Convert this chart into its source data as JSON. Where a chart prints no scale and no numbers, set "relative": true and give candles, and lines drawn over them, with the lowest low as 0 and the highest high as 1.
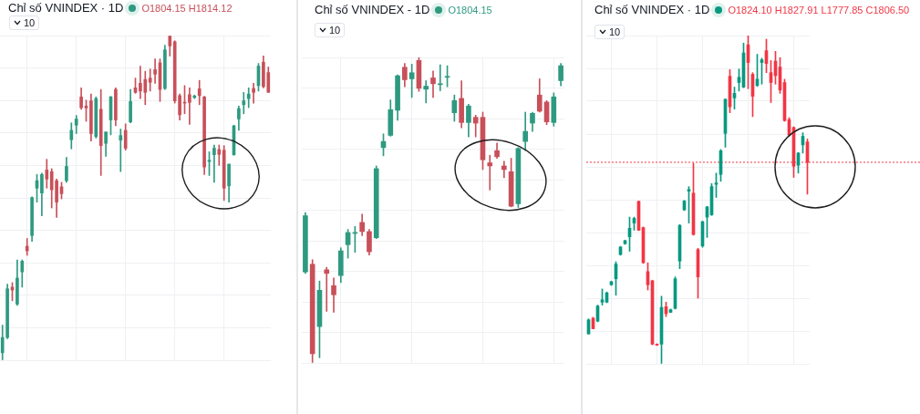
{
  "chart_data": [
    {
      "type": "candlestick",
      "title": "Chỉ số VNINDEX · 1D",
      "subtitle": "O1804.15 H1814.12",
      "annotations": [
        "10"
      ],
      "relative": true,
      "grid": true,
      "colors": [
        "#2e9a80",
        "#2e9a80",
        "#c8505a",
        "#2e9a80",
        "#2e9a80",
        "#c8505a",
        "#2e9a80",
        "#2e9a80",
        "#2e9a80",
        "#c8505a",
        "#c8505a",
        "#c8505a",
        "#c8505a",
        "#2e9a80",
        "#2e9a80",
        "#2e9a80",
        "#c8505a",
        "#c8505a",
        "#c8505a",
        "#2e9a80",
        "#c8505a",
        "#2e9a80",
        "#2e9a80",
        "#c8505a",
        "#2e9a80",
        "#c8505a",
        "#2e9a80",
        "#c8505a",
        "#c8505a",
        "#c8505a",
        "#c8505a",
        "#c8505a",
        "#c8505a",
        "#2e9a80",
        "#c8505a",
        "#c8505a",
        "#c8505a",
        "#c8505a",
        "#c8505a",
        "#2e9a80",
        "#c8505a",
        "#c8505a",
        "#2e9a80",
        "#2e9a80",
        "#c8505a",
        "#c8505a",
        "#2e9a80",
        "#2e9a80",
        "#2e9a80",
        "#2e9a80",
        "#2e9a80",
        "#c8505a",
        "#2e9a80",
        "#c8505a",
        "#c8505a"
      ],
      "categories": [
        null,
        null,
        null,
        null,
        null,
        null,
        null,
        null,
        null,
        null,
        null,
        null,
        null,
        null,
        null,
        null,
        null,
        null,
        null,
        null,
        null,
        null,
        null,
        null,
        null,
        null,
        null,
        null,
        null,
        null,
        null,
        null,
        null,
        null,
        null,
        null,
        null,
        null,
        null,
        null,
        null,
        null,
        null,
        null,
        null,
        null,
        null,
        null,
        null,
        null,
        null,
        null,
        null,
        null,
        null
      ],
      "ohlc": [
        [
          0.023,
          0.108,
          0,
          0.07
        ],
        [
          0.07,
          0.234,
          0.066,
          0.22
        ],
        [
          0.225,
          0.239,
          0.183,
          0.216
        ],
        [
          0.173,
          0.309,
          0.169,
          0.253
        ],
        [
          0.272,
          0.309,
          0.225,
          0.305
        ],
        [
          0.351,
          0.375,
          0.323,
          0.337
        ],
        [
          0.384,
          0.503,
          0.366,
          0.501
        ],
        [
          0.53,
          0.572,
          0.487,
          0.553
        ],
        [
          0.515,
          0.576,
          0.445,
          0.572
        ],
        [
          0.586,
          0.619,
          0.53,
          0.558
        ],
        [
          0.581,
          0.59,
          0.469,
          0.525
        ],
        [
          0.553,
          0.558,
          0.44,
          0.487
        ],
        [
          0.534,
          0.548,
          0.497,
          0.513
        ],
        [
          0.553,
          0.625,
          0.548,
          0.597
        ],
        [
          0.679,
          0.731,
          0.651,
          0.708
        ],
        [
          0.724,
          0.754,
          0.698,
          0.743
        ],
        [
          0.811,
          0.839,
          0.773,
          0.778
        ],
        [
          0.783,
          0.801,
          0.736,
          0.777
        ],
        [
          0.799,
          0.82,
          0.675,
          0.698
        ],
        [
          0.689,
          0.811,
          0.684,
          0.806
        ],
        [
          0.773,
          0.834,
          0.569,
          0.661
        ],
        [
          0.668,
          0.703,
          0.628,
          0.703
        ],
        [
          0.74,
          0.813,
          0.694,
          0.811
        ],
        [
          0.834,
          0.839,
          0.722,
          0.74
        ],
        [
          0.678,
          0.712,
          0.581,
          0.692
        ],
        [
          0.708,
          0.728,
          0.647,
          0.653
        ],
        [
          0.734,
          0.834,
          0.731,
          0.797
        ],
        [
          0.839,
          0.869,
          0.822,
          0.825
        ],
        [
          0.853,
          0.906,
          0.806,
          0.829
        ],
        [
          0.865,
          0.89,
          0.787,
          0.825
        ],
        [
          0.869,
          0.897,
          0.829,
          0.856
        ],
        [
          0.895,
          0.928,
          0.853,
          0.881
        ],
        [
          0.916,
          0.928,
          0.797,
          0.834
        ],
        [
          0.837,
          0.97,
          0.834,
          0.956
        ],
        [
          0.998,
          1,
          0.937,
          0.968
        ],
        [
          0.981,
          0.984,
          0.792,
          0.799
        ],
        [
          0.815,
          0.82,
          0.74,
          0.756
        ],
        [
          0.794,
          0.846,
          0.759,
          0.792
        ],
        [
          0.818,
          0.839,
          0.726,
          0.794
        ],
        [
          0.809,
          0.817,
          0.806,
          0.814
        ],
        [
          0.836,
          0.862,
          0.787,
          0.815
        ],
        [
          0.811,
          0.813,
          0.572,
          0.595
        ],
        [
          0.612,
          0.642,
          0.569,
          0.616
        ],
        [
          0.633,
          0.663,
          0.548,
          0.653
        ],
        [
          0.649,
          0.663,
          0.6,
          0.634
        ],
        [
          0.647,
          0.661,
          0.492,
          0.53
        ],
        [
          0.537,
          0.604,
          0.487,
          0.604
        ],
        [
          0.633,
          0.724,
          0.631,
          0.722
        ],
        [
          0.743,
          0.783,
          0.708,
          0.775
        ],
        [
          0.787,
          0.825,
          0.759,
          0.799
        ],
        [
          0.806,
          0.839,
          0.778,
          0.82
        ],
        [
          0.837,
          0.853,
          0.792,
          0.825
        ],
        [
          0.846,
          0.914,
          0.829,
          0.906
        ],
        [
          0.918,
          0.937,
          0.839,
          0.843
        ],
        [
          0.886,
          0.903,
          0.825,
          0.825
        ]
      ]
    },
    {
      "type": "candlestick",
      "title": "Chỉ số VNINDEX - 1D",
      "subtitle": "O1804.15",
      "annotations": [
        "10"
      ],
      "relative": true,
      "grid": true,
      "colors": [
        "#2e9a80",
        "#c8505a",
        "#2e9a80",
        "#c8505a",
        "#c8505a",
        "#2e9a80",
        "#2e9a80",
        "#2e9a80",
        "#c8505a",
        "#c8505a",
        "#2e9a80",
        "#2e9a80",
        "#2e9a80",
        "#2e9a80",
        "#c8505a",
        "#2e9a80",
        "#c8505a",
        "#2e9a80",
        "#c8505a",
        "#2e9a80",
        "#2e9a80",
        "#2e9a80",
        "#c8505a",
        "#2e9a80",
        "#c8505a",
        "#c8505a",
        "#c8505a",
        "#c8505a",
        "#c8505a",
        "#c8505a",
        "#2e9a80",
        "#2e9a80",
        "#2e9a80",
        "#c8505a",
        "#c8505a",
        "#2e9a80",
        "#2e9a80"
      ],
      "categories": [
        null,
        null,
        null,
        null,
        null,
        null,
        null,
        null,
        null,
        null,
        null,
        null,
        null,
        null,
        null,
        null,
        null,
        null,
        null,
        null,
        null,
        null,
        null,
        null,
        null,
        null,
        null,
        null,
        null,
        null,
        null,
        null,
        null,
        null,
        null,
        null,
        null
      ],
      "ohlc": [
        [
          0.298,
          0.492,
          0.293,
          0.482
        ],
        [
          0.323,
          0.338,
          0,
          0.03
        ],
        [
          0.119,
          0.268,
          0.017,
          0.238
        ],
        [
          0.305,
          0.313,
          0.169,
          0.293
        ],
        [
          0.253,
          0.278,
          0.166,
          0.223
        ],
        [
          0.286,
          0.377,
          0.263,
          0.367
        ],
        [
          0.387,
          0.437,
          0.343,
          0.427
        ],
        [
          0.424,
          0.447,
          0.362,
          0.427
        ],
        [
          0.46,
          0.487,
          0.417,
          0.43
        ],
        [
          0.43,
          0.437,
          0.353,
          0.364
        ],
        [
          0.41,
          0.645,
          0.407,
          0.636
        ],
        [
          0.705,
          0.75,
          0.678,
          0.725
        ],
        [
          0.745,
          0.861,
          0.742,
          0.829
        ],
        [
          0.827,
          0.943,
          0.794,
          0.94
        ],
        [
          0.968,
          0.98,
          0.904,
          0.927
        ],
        [
          0.93,
          0.978,
          0.869,
          0.95
        ],
        [
          0.99,
          1,
          0.889,
          0.899
        ],
        [
          0.896,
          0.924,
          0.851,
          0.906
        ],
        [
          0.933,
          0.956,
          0.869,
          0.914
        ],
        [
          0.911,
          0.976,
          0.891,
          0.914
        ],
        [
          0.935,
          0.973,
          0.904,
          0.937
        ],
        [
          0.819,
          0.877,
          0.791,
          0.859
        ],
        [
          0.866,
          0.924,
          0.77,
          0.787
        ],
        [
          0.787,
          0.847,
          0.74,
          0.841
        ],
        [
          0.804,
          0.811,
          0.74,
          0.785
        ],
        [
          0.804,
          0.821,
          0.633,
          0.665
        ],
        [
          0.655,
          0.68,
          0.566,
          0.645
        ],
        [
          0.695,
          0.72,
          0.67,
          0.675
        ],
        [
          0.645,
          0.66,
          0.606,
          0.633
        ],
        [
          0.626,
          0.67,
          0.511,
          0.513
        ],
        [
          0.521,
          0.705,
          0.509,
          0.702
        ],
        [
          0.725,
          0.821,
          0.695,
          0.758
        ],
        [
          0.785,
          0.821,
          0.758,
          0.817
        ],
        [
          0.877,
          0.93,
          0.821,
          0.824
        ],
        [
          0.854,
          0.859,
          0.78,
          0.789
        ],
        [
          0.787,
          0.884,
          0.775,
          0.871
        ],
        [
          0.924,
          0.98,
          0.907,
          0.973
        ]
      ]
    },
    {
      "type": "candlestick",
      "title": "Chỉ số VNINDEX · 1D",
      "subtitle": "O1824.10 H1827.91 L1777.85 C1806.50",
      "annotations": [
        "10"
      ],
      "relative": true,
      "grid": true,
      "colors": [
        "#089981",
        "#f23645",
        "#089981",
        "#089981",
        "#089981",
        "#089981",
        "#089981",
        "#089981",
        "#089981",
        "#089981",
        "#089981",
        "#f23645",
        "#f23645",
        "#f23645",
        "#f23645",
        "#f23645",
        "#089981",
        "#f23645",
        "#089981",
        "#089981",
        "#089981",
        "#089981",
        "#089981",
        "#f23645",
        "#f23645",
        "#089981",
        "#089981",
        "#089981",
        "#089981",
        "#089981",
        "#089981",
        "#f23645",
        "#089981",
        "#089981",
        "#089981",
        "#f23645",
        "#f23645",
        "#089981",
        "#089981",
        "#f23645",
        "#f23645",
        "#f23645",
        "#f23645",
        "#f23645",
        "#f23645",
        "#f23645",
        "#089981",
        "#089981",
        "#f23645"
      ],
      "ref_lines": [
        {
          "axis": "y",
          "value": 0.614,
          "color": "#f23645",
          "line_style": "dotted"
        }
      ],
      "categories": [
        null,
        null,
        null,
        null,
        null,
        null,
        null,
        null,
        null,
        null,
        null,
        null,
        null,
        null,
        null,
        null,
        null,
        null,
        null,
        null,
        null,
        null,
        null,
        null,
        null,
        null,
        null,
        null,
        null,
        null,
        null,
        null,
        null,
        null,
        null,
        null,
        null,
        null,
        null,
        null,
        null,
        null,
        null,
        null,
        null,
        null,
        null,
        null,
        null
      ],
      "ohlc": [
        [
          0.091,
          0.137,
          0.091,
          0.134
        ],
        [
          0.139,
          0.142,
          0.107,
          0.107
        ],
        [
          0.13,
          0.179,
          0.128,
          0.176
        ],
        [
          0.188,
          0.228,
          0.179,
          0.195
        ],
        [
          0.188,
          0.219,
          0.186,
          0.216
        ],
        [
          0.241,
          0.252,
          0.239,
          0.25
        ],
        [
          0.259,
          0.311,
          0.209,
          0.304
        ],
        [
          0.333,
          0.358,
          0.331,
          0.356
        ],
        [
          0.366,
          0.377,
          0.364,
          0.375
        ],
        [
          0.387,
          0.447,
          0.343,
          0.413
        ],
        [
          0.429,
          0.447,
          0.407,
          0.443
        ],
        [
          0.495,
          0.496,
          0.406,
          0.407
        ],
        [
          0.415,
          0.417,
          0.306,
          0.308
        ],
        [
          0.281,
          0.308,
          0.225,
          0.241
        ],
        [
          0.253,
          0.255,
          0.058,
          0.06
        ],
        [
          0.06,
          0.061,
          0.056,
          0.057
        ],
        [
          0.06,
          0.206,
          0,
          0.172
        ],
        [
          0.174,
          0.188,
          0.144,
          0.153
        ],
        [
          0.157,
          0.167,
          0.156,
          0.165
        ],
        [
          0.169,
          0.265,
          0.167,
          0.259
        ],
        [
          0.313,
          0.424,
          0.29,
          0.422
        ],
        [
          0.469,
          0.498,
          0.467,
          0.496
        ],
        [
          0.526,
          0.54,
          0.429,
          0.531
        ],
        [
          0.52,
          0.611,
          0.392,
          0.394
        ],
        [
          0.348,
          0.352,
          0.2,
          0.265
        ],
        [
          0.359,
          0.435,
          0.355,
          0.433
        ],
        [
          0.447,
          0.48,
          0.385,
          0.478
        ],
        [
          0.454,
          0.549,
          0.452,
          0.54
        ],
        [
          0.547,
          0.581,
          0.507,
          0.551
        ],
        [
          0.577,
          0.653,
          0.556,
          0.649
        ],
        [
          0.702,
          0.807,
          0.66,
          0.806
        ],
        [
          0.876,
          0.896,
          0.765,
          0.783
        ],
        [
          0.81,
          0.843,
          0.776,
          0.824
        ],
        [
          0.857,
          0.898,
          0.831,
          0.873
        ],
        [
          0.843,
          0.977,
          0.841,
          0.947
        ],
        [
          0.972,
          1,
          0.838,
          0.918
        ],
        [
          0.882,
          0.887,
          0.753,
          0.815
        ],
        [
          0.848,
          0.943,
          0.845,
          0.867
        ],
        [
          0.918,
          0.931,
          0.852,
          0.926
        ],
        [
          0.954,
          0.989,
          0.887,
          0.915
        ],
        [
          0.887,
          0.924,
          0.796,
          0.857
        ],
        [
          0.922,
          0.952,
          0.852,
          0.878
        ],
        [
          0.904,
          0.933,
          0.824,
          0.834
        ],
        [
          0.857,
          0.867,
          0.739,
          0.741
        ],
        [
          0.744,
          0.75,
          0.694,
          0.697
        ],
        [
          0.72,
          0.722,
          0.568,
          0.602
        ],
        [
          0.605,
          0.644,
          0.581,
          0.642
        ],
        [
          0.667,
          0.704,
          0.642,
          0.693
        ],
        [
          0.676,
          0.685,
          0.517,
          0.614
        ]
      ]
    }
  ]
}
